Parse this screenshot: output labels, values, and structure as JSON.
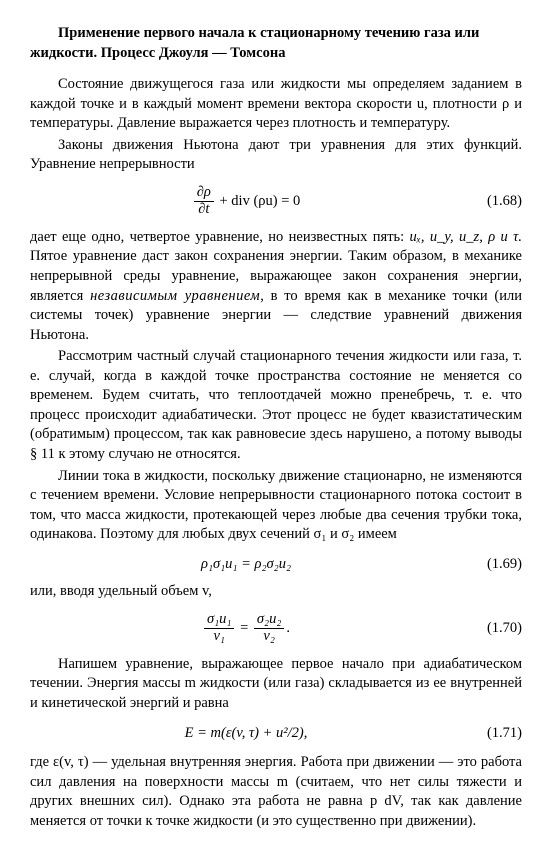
{
  "heading": "Применение первого начала к стационарному течению газа или жидкости. Процесс Джоуля — Томсона",
  "p1": "Состояние движущегося газа или жидкости мы определяем заданием в каждой точке и в каждый момент времени вектора скорости u, плотности ρ и температуры. Давление выражается через плотность и температуру.",
  "p2": "Законы движения Ньютона дают три уравнения для этих функций. Уравнение непрерывности",
  "eq1_lhs_top": "∂ρ",
  "eq1_lhs_bot": "∂t",
  "eq1_rest": " + div (ρu) = 0",
  "eq1_num": "(1.68)",
  "p3a": "дает еще одно, четвертое уравнение, но неизвестных пять: ",
  "p3b": "uₓ, u_y, u_z, ρ и τ.",
  "p3c": " Пятое уравнение даст закон сохранения энергии. Таким образом, в механике непрерывной среды уравнение, выражающее закон сохранения энергии, является ",
  "p3d": "независимым уравнением",
  "p3e": ", в то время как в механике точки (или системы точек) уравнение энергии — следствие уравнений движения Ньютона.",
  "p4": "Рассмотрим частный случай стационарного течения жидкости или газа, т. е. случай, когда в каждой точке пространства состояние не меняется со временем. Будем считать, что теплоотдачей можно пренебречь, т. е. что процесс происходит адиабатически. Этот процесс не будет квазистатическим (обратимым) процессом, так как равновесие здесь нарушено, а потому выводы § 11 к этому случаю не относятся.",
  "p5": "Линии тока в жидкости, поскольку движение стационарно, не изменяются с течением времени. Условие непрерывности стационарного потока состоит в том, что масса жидкости, протекающей через любые два сечения трубки тока, одинакова. Поэтому для любых двух сечений σ₁ и σ₂ имеем",
  "eq2": "ρ₁σ₁u₁ = ρ₂σ₂u₂",
  "eq2_num": "(1.69)",
  "p6": "или, вводя удельный объем v,",
  "eq3_l_top": "σ₁u₁",
  "eq3_l_bot": "v₁",
  "eq3_mid": " = ",
  "eq3_r_top": "σ₂u₂",
  "eq3_r_bot": "v₂",
  "eq3_tail": ".",
  "eq3_num": "(1.70)",
  "p7": "Напишем уравнение, выражающее первое начало при адиабатическом течении. Энергия массы m жидкости (или газа) складывается из ее внутренней и кинетической энергий и равна",
  "eq4": "E = m(ε(v, τ) + u²/2),",
  "eq4_num": "(1.71)",
  "p8": "где ε(v, τ) — удельная внутренняя энергия. Работа при движении — это работа сил давления на поверхности массы m (считаем, что нет силы тяжести и других внешних сил). Однако эта работа не равна p dV, так как давление меняется от точки к точке жидкости (и это существенно при движении)."
}
